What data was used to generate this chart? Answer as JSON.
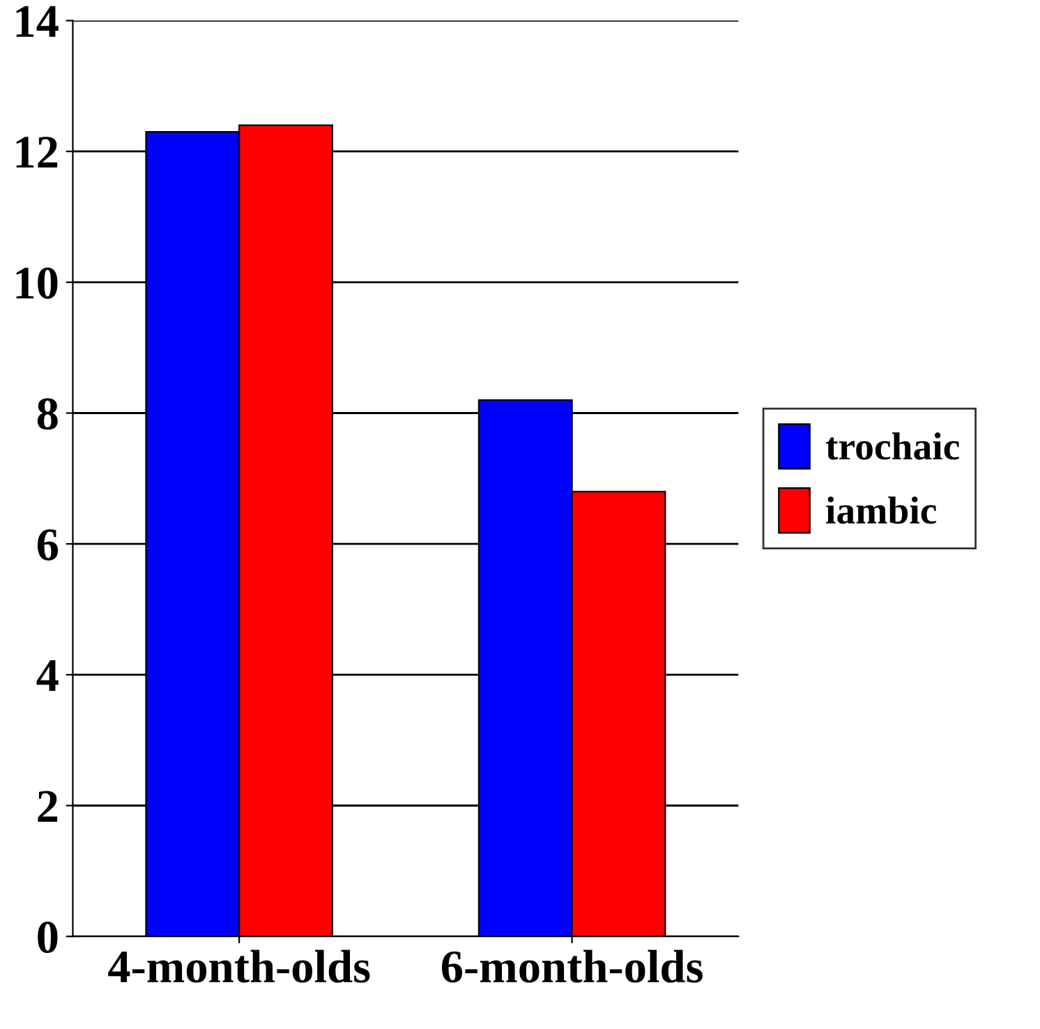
{
  "chart_data": {
    "type": "bar",
    "categories": [
      "4-month-olds",
      "6-month-olds"
    ],
    "series": [
      {
        "name": "trochaic",
        "color": "#0000ff",
        "values": [
          12.3,
          8.2
        ]
      },
      {
        "name": "iambic",
        "color": "#ff0000",
        "values": [
          12.4,
          6.8
        ]
      }
    ],
    "ylim": [
      0,
      14
    ],
    "yticks": [
      0,
      2,
      4,
      6,
      8,
      10,
      12,
      14
    ],
    "grid": "y",
    "legend": "right"
  }
}
